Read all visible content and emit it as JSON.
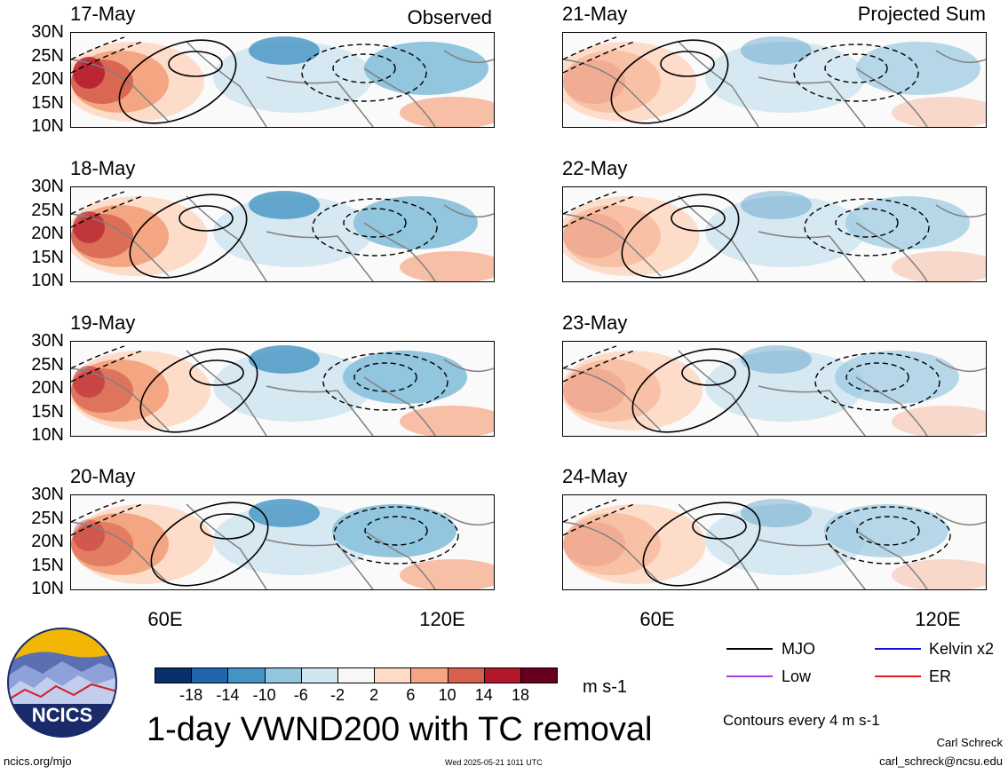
{
  "colors": {
    "neg_strong": "#2a5ea8",
    "pos_strong": "#b41e1e",
    "mjo": "#000000",
    "kelvin": "#1010e0",
    "low": "#a040e0",
    "er": "#e02020"
  },
  "yticks": [
    "30N",
    "25N",
    "20N",
    "15N",
    "10N"
  ],
  "xticks": [
    "60E",
    "120E"
  ],
  "headers": {
    "left": "Observed",
    "right": "Projected Sum"
  },
  "panels": [
    {
      "date": "17-May",
      "col": "left"
    },
    {
      "date": "18-May",
      "col": "left"
    },
    {
      "date": "19-May",
      "col": "left"
    },
    {
      "date": "20-May",
      "col": "left"
    },
    {
      "date": "21-May",
      "col": "right"
    },
    {
      "date": "22-May",
      "col": "right"
    },
    {
      "date": "23-May",
      "col": "right"
    },
    {
      "date": "24-May",
      "col": "right"
    }
  ],
  "colorbar": {
    "ticks": [
      "-18",
      "-14",
      "-10",
      "-6",
      "-2",
      "2",
      "6",
      "10",
      "14",
      "18"
    ],
    "colors": [
      "#08306b",
      "#2166ac",
      "#4393c3",
      "#92c5de",
      "#d1e5f0",
      "#f7f7f7",
      "#fddbc7",
      "#f4a582",
      "#d6604d",
      "#b2182b",
      "#67001f"
    ],
    "units": "m s-1"
  },
  "title": "1-day VWND200 with TC removal",
  "legend": {
    "mjo": "MJO",
    "kelvin": "Kelvin x2",
    "low": "Low",
    "er": "ER",
    "contours_note": "Contours every 4 m s-1"
  },
  "logo_text": "NCICS",
  "footer": {
    "url": "ncics.org/mjo",
    "timestamp": "Wed 2025-05-21 1011 UTC",
    "author": "Carl Schreck",
    "email": "carl_schreck@ncsu.edu"
  }
}
